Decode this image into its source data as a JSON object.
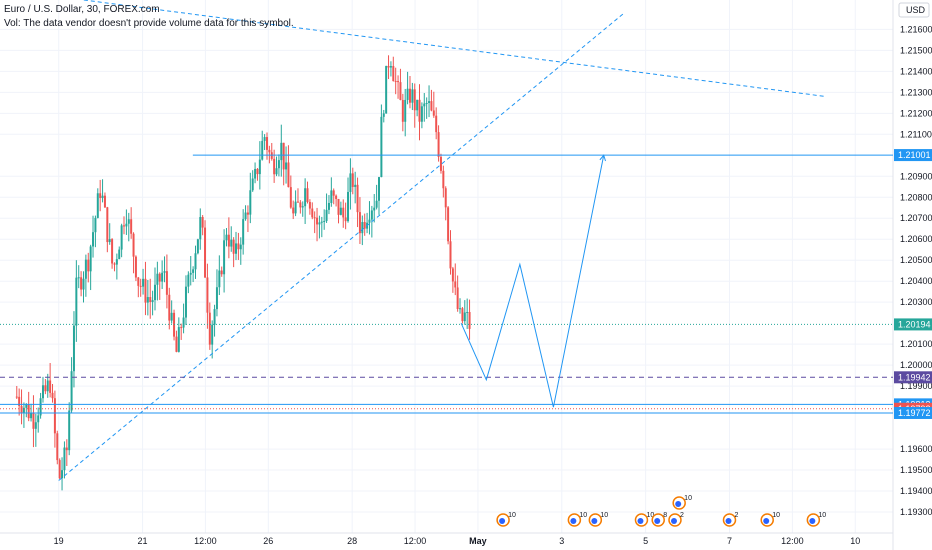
{
  "legend": {
    "symbol": "Euro / U.S. Dollar, 30, FOREX.com",
    "volume_note": "Vol: The data vendor doesn't provide volume data for this symbol."
  },
  "currency_label": "USD",
  "colors": {
    "up": "#26a69a",
    "down": "#ef5350",
    "line": "#2196f3",
    "last_price": "#26a69a",
    "alert_line": "#5b4aa0",
    "red_level": "#ef5350",
    "grid": "#f0f3fa"
  },
  "chart_data": {
    "type": "candlestick",
    "title": "Euro / U.S. Dollar, 30, FOREX.com",
    "ylim": [
      1.192,
      1.2174
    ],
    "y_ticks": [
      "1.21600",
      "1.21500",
      "1.21400",
      "1.21300",
      "1.21200",
      "1.21100",
      "1.20900",
      "1.20800",
      "1.20700",
      "1.20600",
      "1.20500",
      "1.20400",
      "1.20300",
      "1.20100",
      "1.20000",
      "1.19900",
      "1.19600",
      "1.19500",
      "1.19400",
      "1.19300"
    ],
    "x_ticks": [
      {
        "label": "19",
        "t": 19.0
      },
      {
        "label": "21",
        "t": 21.0
      },
      {
        "label": "12:00",
        "t": 22.5
      },
      {
        "label": "26",
        "t": 24.0
      },
      {
        "label": "28",
        "t": 26.0
      },
      {
        "label": "12:00",
        "t": 27.5
      },
      {
        "label": "May",
        "t": 29.0
      },
      {
        "label": "3",
        "t": 31.0
      },
      {
        "label": "5",
        "t": 33.0
      },
      {
        "label": "7",
        "t": 35.0
      },
      {
        "label": "12:00",
        "t": 36.5
      },
      {
        "label": "10",
        "t": 38.0
      }
    ],
    "price_path": [
      [
        18.0,
        1.1985
      ],
      [
        18.4,
        1.1975
      ],
      [
        18.8,
        1.1992
      ],
      [
        19.0,
        1.1945
      ],
      [
        19.2,
        1.196
      ],
      [
        19.4,
        1.2035
      ],
      [
        19.7,
        1.205
      ],
      [
        20.0,
        1.2085
      ],
      [
        20.3,
        1.2045
      ],
      [
        20.6,
        1.2075
      ],
      [
        20.9,
        1.204
      ],
      [
        21.2,
        1.203
      ],
      [
        21.5,
        1.2045
      ],
      [
        21.8,
        1.2005
      ],
      [
        22.1,
        1.204
      ],
      [
        22.4,
        1.207
      ],
      [
        22.6,
        1.2015
      ],
      [
        22.8,
        1.2035
      ],
      [
        23.0,
        1.2065
      ],
      [
        23.2,
        1.205
      ],
      [
        23.5,
        1.2075
      ],
      [
        23.7,
        1.209
      ],
      [
        23.9,
        1.211
      ],
      [
        24.1,
        1.2095
      ],
      [
        24.3,
        1.2105
      ],
      [
        24.6,
        1.207
      ],
      [
        24.9,
        1.2085
      ],
      [
        25.2,
        1.2065
      ],
      [
        25.5,
        1.208
      ],
      [
        25.8,
        1.207
      ],
      [
        26.0,
        1.209
      ],
      [
        26.2,
        1.2065
      ],
      [
        26.4,
        1.2075
      ],
      [
        26.6,
        1.208
      ],
      [
        26.7,
        1.2115
      ],
      [
        26.8,
        1.2135
      ],
      [
        26.9,
        1.215
      ],
      [
        27.0,
        1.2138
      ],
      [
        27.2,
        1.212
      ],
      [
        27.4,
        1.213
      ],
      [
        27.6,
        1.2118
      ],
      [
        27.8,
        1.2125
      ],
      [
        28.0,
        1.2112
      ],
      [
        28.1,
        1.2098
      ],
      [
        28.2,
        1.2085
      ],
      [
        28.3,
        1.206
      ],
      [
        28.4,
        1.204
      ],
      [
        28.5,
        1.2028
      ],
      [
        28.6,
        1.202
      ],
      [
        28.7,
        1.2024
      ],
      [
        28.8,
        1.2019
      ]
    ],
    "last_price": 1.20194,
    "levels": [
      {
        "value": 1.21001,
        "label": "1.21001",
        "style": "solid",
        "color": "line"
      },
      {
        "value": 1.20194,
        "label": "1.20194",
        "style": "dotted",
        "color": "last_price"
      },
      {
        "value": 1.19942,
        "label": "1.19942",
        "style": "dashed",
        "color": "alert_line"
      },
      {
        "value": 1.19813,
        "label": "1.19813",
        "style": "solid",
        "color": "line"
      },
      {
        "value": 1.19792,
        "label": "1.19792",
        "style": "dotted",
        "color": "red_level"
      },
      {
        "value": 1.19772,
        "label": "1.19772",
        "style": "solid",
        "color": "line"
      }
    ],
    "trendlines": [
      {
        "name": "upper-resistance",
        "points": [
          [
            19.6,
            1.2174
          ],
          [
            37.3,
            1.2128
          ]
        ]
      },
      {
        "name": "rising-support",
        "points": [
          [
            19.0,
            1.1945
          ],
          [
            32.5,
            1.2168
          ]
        ]
      }
    ],
    "projection_path": [
      [
        28.6,
        1.202
      ],
      [
        29.2,
        1.1993
      ],
      [
        30.0,
        1.2048
      ],
      [
        30.8,
        1.198
      ],
      [
        32.0,
        1.21
      ]
    ],
    "event_markers": [
      {
        "label": "10",
        "t": 29.6
      },
      {
        "label": "10",
        "t": 31.3
      },
      {
        "label": "10",
        "t": 31.8
      },
      {
        "label": "10",
        "t": 32.9
      },
      {
        "label": "8",
        "t": 33.3
      },
      {
        "label": "2",
        "t": 33.7
      },
      {
        "label": "10",
        "t": 33.8
      },
      {
        "label": "2",
        "t": 35.0
      },
      {
        "label": "10",
        "t": 35.9
      },
      {
        "label": "10",
        "t": 37.0
      }
    ]
  }
}
